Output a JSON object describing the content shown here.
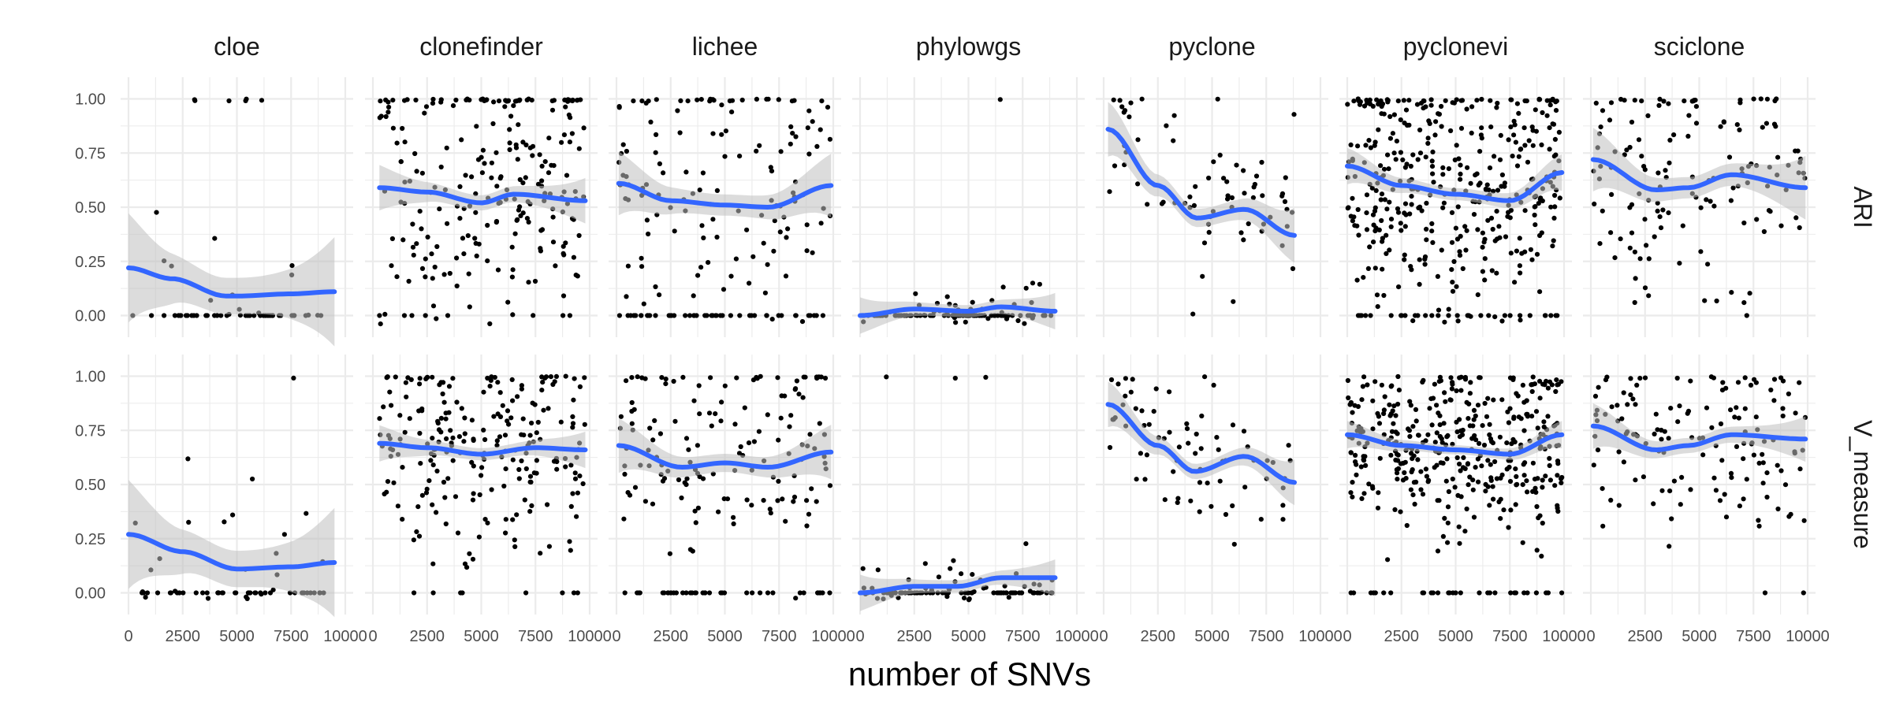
{
  "chart_data": {
    "type": "scatter",
    "subtype": "faceted scatter with loess smooth and confidence band",
    "xlabel": "number of SNVs",
    "ylabel": "",
    "xlim": [
      0,
      10000
    ],
    "ylim": [
      -0.1,
      1.1
    ],
    "x_ticks": [
      0,
      2500,
      5000,
      7500,
      10000
    ],
    "x_tick_labels": [
      "0",
      "2500",
      "5000",
      "7500",
      "10000"
    ],
    "y_ticks": [
      0,
      0.25,
      0.5,
      0.75,
      1
    ],
    "y_tick_labels": [
      "0.00",
      "0.25",
      "0.50",
      "0.75",
      "1.00"
    ],
    "grid": true,
    "colors": {
      "points": "#000000",
      "smooth": "#3366FF",
      "band": "#bfbfbf",
      "grid": "#ebebeb"
    },
    "facet_columns": [
      "cloe",
      "clonefinder",
      "lichee",
      "phylowgs",
      "pyclone",
      "pyclonevi",
      "sciclone"
    ],
    "facet_rows": [
      "ARI",
      "V_measure"
    ],
    "panels": [
      {
        "column": "cloe",
        "row": "ARI",
        "x_range": [
          0,
          9500
        ],
        "mean": 0.15,
        "sd": 0.2,
        "n": 60,
        "zero_frac": 0.65,
        "one_frac": 0.1,
        "smooth": [
          [
            0,
            0.22
          ],
          [
            2000,
            0.17
          ],
          [
            4500,
            0.09
          ],
          [
            5000,
            0.09
          ],
          [
            7500,
            0.1
          ],
          [
            9500,
            0.11
          ]
        ],
        "band_half_width": 0.12
      },
      {
        "column": "clonefinder",
        "row": "ARI",
        "x_range": [
          300,
          9800
        ],
        "mean": 0.55,
        "sd": 0.28,
        "n": 240,
        "zero_frac": 0.03,
        "one_frac": 0.1,
        "smooth": [
          [
            300,
            0.59
          ],
          [
            2500,
            0.57
          ],
          [
            5000,
            0.52
          ],
          [
            6500,
            0.56
          ],
          [
            9800,
            0.53
          ]
        ],
        "band_half_width": 0.05
      },
      {
        "column": "lichee",
        "row": "ARI",
        "x_range": [
          100,
          9900
        ],
        "mean": 0.55,
        "sd": 0.28,
        "n": 180,
        "zero_frac": 0.22,
        "one_frac": 0.12,
        "smooth": [
          [
            100,
            0.61
          ],
          [
            2500,
            0.53
          ],
          [
            5000,
            0.51
          ],
          [
            7000,
            0.5
          ],
          [
            9900,
            0.6
          ]
        ],
        "band_half_width": 0.07
      },
      {
        "column": "phylowgs",
        "row": "ARI",
        "x_range": [
          0,
          9000
        ],
        "mean": 0.03,
        "sd": 0.05,
        "n": 110,
        "zero_frac": 0.7,
        "one_frac": 0.01,
        "smooth": [
          [
            0,
            0.0
          ],
          [
            2500,
            0.03
          ],
          [
            5000,
            0.02
          ],
          [
            6500,
            0.04
          ],
          [
            9000,
            0.02
          ]
        ],
        "band_half_width": 0.04
      },
      {
        "column": "pyclone",
        "row": "ARI",
        "x_range": [
          200,
          8800
        ],
        "mean": 0.45,
        "sd": 0.2,
        "n": 70,
        "zero_frac": 0.0,
        "one_frac": 0.02,
        "smooth": [
          [
            200,
            0.86
          ],
          [
            2500,
            0.6
          ],
          [
            4300,
            0.45
          ],
          [
            6500,
            0.49
          ],
          [
            8800,
            0.37
          ]
        ],
        "band_half_width": 0.06
      },
      {
        "column": "pyclonevi",
        "row": "ARI",
        "x_range": [
          0,
          9900
        ],
        "mean": 0.58,
        "sd": 0.28,
        "n": 420,
        "zero_frac": 0.07,
        "one_frac": 0.07,
        "smooth": [
          [
            0,
            0.69
          ],
          [
            2500,
            0.6
          ],
          [
            5000,
            0.56
          ],
          [
            7500,
            0.53
          ],
          [
            9900,
            0.66
          ]
        ],
        "band_half_width": 0.04
      },
      {
        "column": "sciclone",
        "row": "ARI",
        "x_range": [
          100,
          9900
        ],
        "mean": 0.6,
        "sd": 0.27,
        "n": 140,
        "zero_frac": 0.02,
        "one_frac": 0.08,
        "smooth": [
          [
            100,
            0.72
          ],
          [
            3000,
            0.58
          ],
          [
            4500,
            0.59
          ],
          [
            6500,
            0.65
          ],
          [
            9900,
            0.59
          ]
        ],
        "band_half_width": 0.07
      },
      {
        "column": "cloe",
        "row": "V_measure",
        "x_range": [
          0,
          9500
        ],
        "mean": 0.2,
        "sd": 0.25,
        "n": 60,
        "zero_frac": 0.65,
        "one_frac": 0.05,
        "smooth": [
          [
            0,
            0.27
          ],
          [
            2500,
            0.19
          ],
          [
            5000,
            0.11
          ],
          [
            7500,
            0.12
          ],
          [
            9500,
            0.14
          ]
        ],
        "band_half_width": 0.12
      },
      {
        "column": "clonefinder",
        "row": "V_measure",
        "x_range": [
          300,
          9800
        ],
        "mean": 0.68,
        "sd": 0.2,
        "n": 240,
        "zero_frac": 0.03,
        "one_frac": 0.06,
        "smooth": [
          [
            300,
            0.69
          ],
          [
            2500,
            0.67
          ],
          [
            5000,
            0.64
          ],
          [
            7500,
            0.67
          ],
          [
            9800,
            0.66
          ]
        ],
        "band_half_width": 0.04
      },
      {
        "column": "lichee",
        "row": "V_measure",
        "x_range": [
          100,
          9900
        ],
        "mean": 0.64,
        "sd": 0.22,
        "n": 180,
        "zero_frac": 0.2,
        "one_frac": 0.06,
        "smooth": [
          [
            100,
            0.68
          ],
          [
            3000,
            0.58
          ],
          [
            5000,
            0.6
          ],
          [
            7000,
            0.58
          ],
          [
            9900,
            0.65
          ]
        ],
        "band_half_width": 0.06
      },
      {
        "column": "phylowgs",
        "row": "V_measure",
        "x_range": [
          0,
          9000
        ],
        "mean": 0.05,
        "sd": 0.07,
        "n": 110,
        "zero_frac": 0.55,
        "one_frac": 0.01,
        "smooth": [
          [
            0,
            0.0
          ],
          [
            2500,
            0.03
          ],
          [
            4500,
            0.03
          ],
          [
            6500,
            0.07
          ],
          [
            9000,
            0.07
          ]
        ],
        "band_half_width": 0.04
      },
      {
        "column": "pyclone",
        "row": "V_measure",
        "x_range": [
          200,
          8800
        ],
        "mean": 0.62,
        "sd": 0.15,
        "n": 70,
        "zero_frac": 0.0,
        "one_frac": 0.02,
        "smooth": [
          [
            200,
            0.87
          ],
          [
            2500,
            0.68
          ],
          [
            4200,
            0.56
          ],
          [
            6500,
            0.63
          ],
          [
            8800,
            0.51
          ]
        ],
        "band_half_width": 0.05
      },
      {
        "column": "pyclonevi",
        "row": "V_measure",
        "x_range": [
          0,
          9900
        ],
        "mean": 0.7,
        "sd": 0.2,
        "n": 420,
        "zero_frac": 0.06,
        "one_frac": 0.04,
        "smooth": [
          [
            0,
            0.73
          ],
          [
            2500,
            0.68
          ],
          [
            5000,
            0.66
          ],
          [
            7500,
            0.64
          ],
          [
            9900,
            0.73
          ]
        ],
        "band_half_width": 0.03
      },
      {
        "column": "sciclone",
        "row": "V_measure",
        "x_range": [
          100,
          9900
        ],
        "mean": 0.7,
        "sd": 0.18,
        "n": 140,
        "zero_frac": 0.02,
        "one_frac": 0.04,
        "smooth": [
          [
            100,
            0.77
          ],
          [
            3000,
            0.66
          ],
          [
            4500,
            0.68
          ],
          [
            6500,
            0.73
          ],
          [
            9900,
            0.71
          ]
        ],
        "band_half_width": 0.05
      }
    ]
  }
}
